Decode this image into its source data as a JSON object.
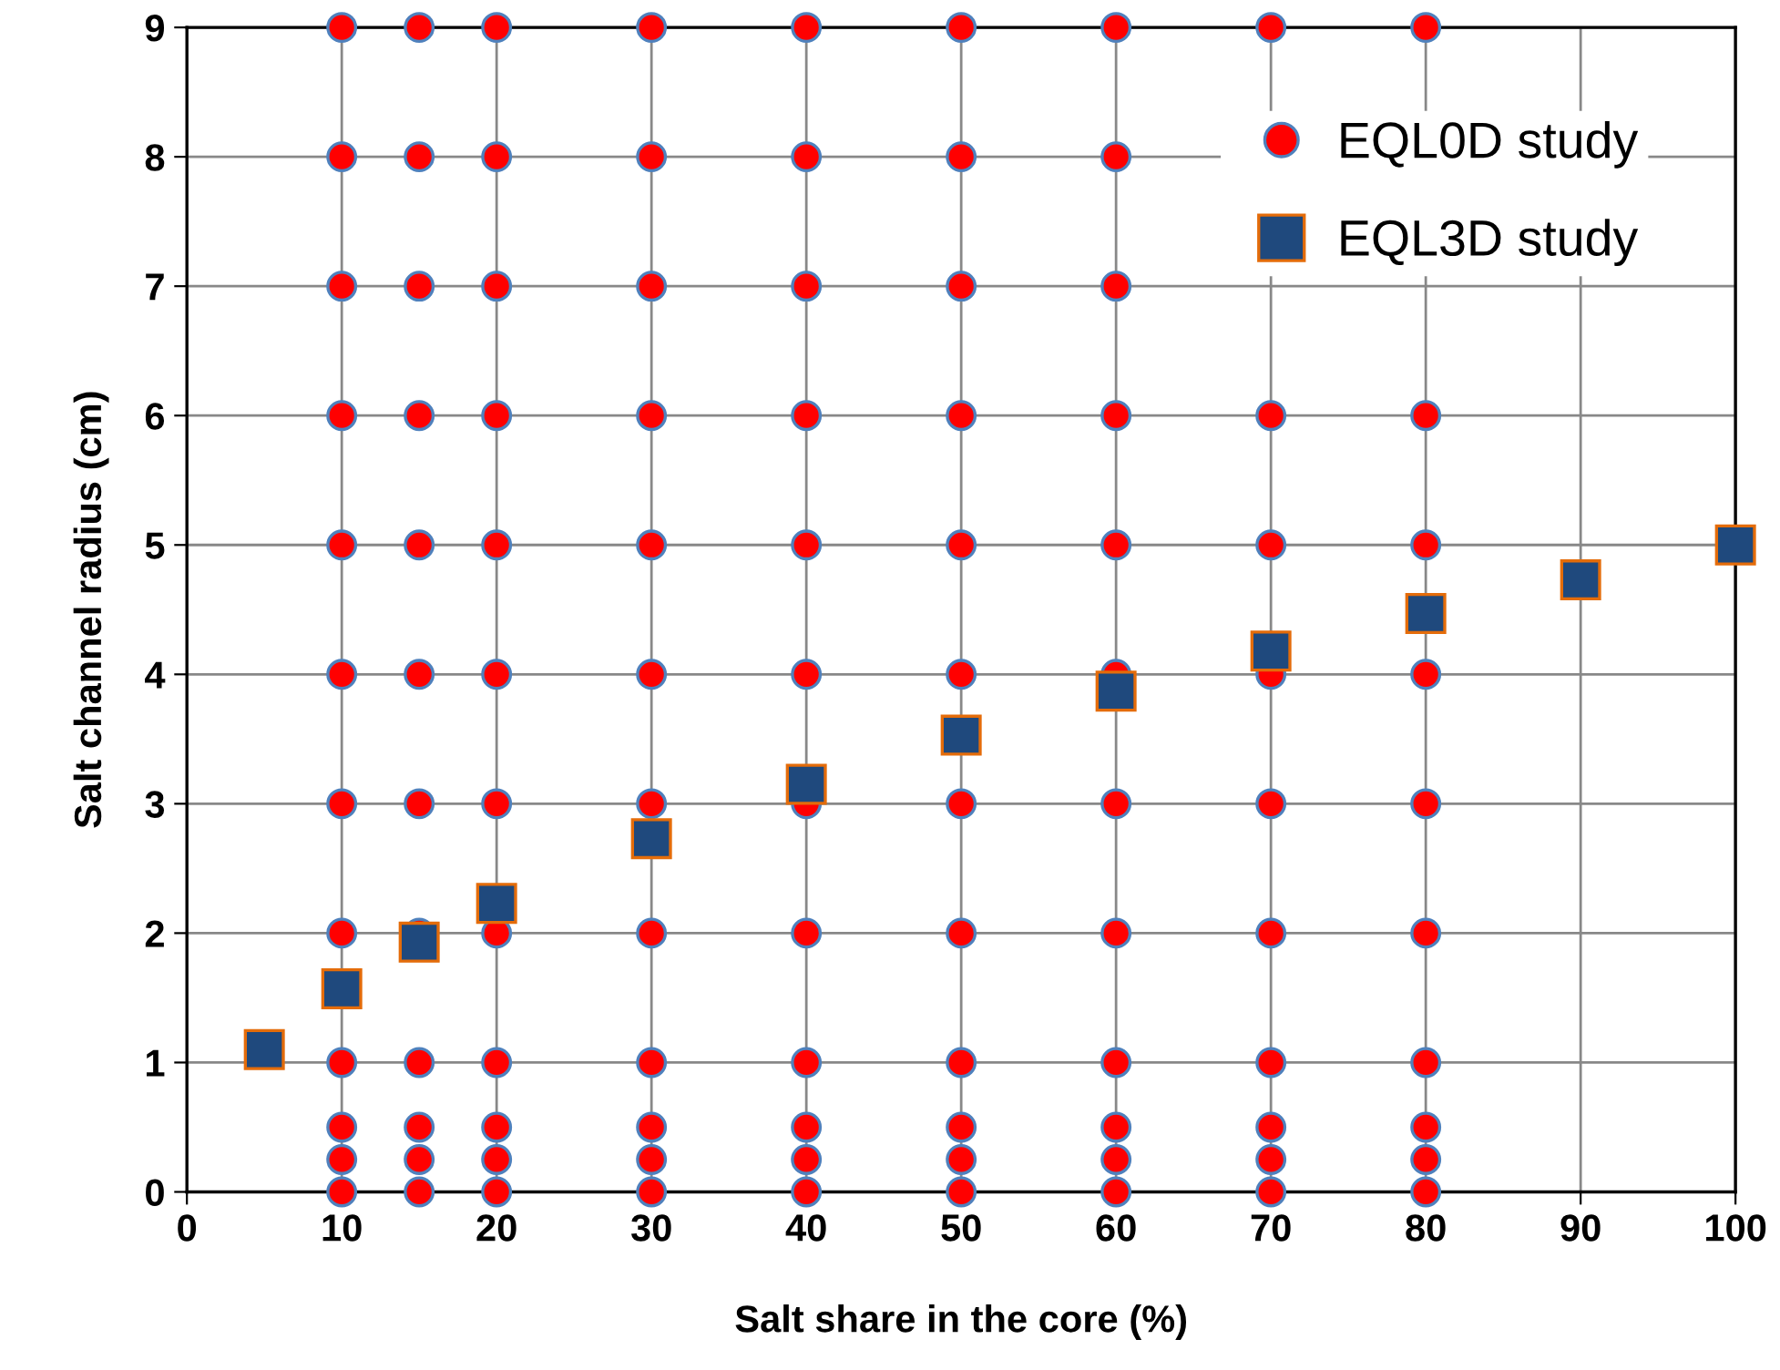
{
  "chart_data": {
    "type": "scatter",
    "xlabel": "Salt share in the core (%)",
    "ylabel": "Salt channel radius (cm)",
    "xlim": [
      0,
      100
    ],
    "xticks": [
      0,
      10,
      20,
      30,
      40,
      50,
      60,
      70,
      80,
      90,
      100
    ],
    "ylim": [
      0,
      9
    ],
    "yticks": [
      0,
      1,
      2,
      3,
      4,
      5,
      6,
      7,
      8,
      9
    ],
    "grid": true,
    "legend": "top right",
    "series": [
      {
        "name": "EQL0D study",
        "color": "#ff0000",
        "marker": "circle",
        "x": [
          10,
          10,
          10,
          10,
          10,
          10,
          10,
          10,
          10,
          10,
          10,
          10,
          15,
          15,
          15,
          15,
          15,
          15,
          15,
          15,
          15,
          15,
          15,
          15,
          20,
          20,
          20,
          20,
          20,
          20,
          20,
          20,
          20,
          20,
          20,
          20,
          30,
          30,
          30,
          30,
          30,
          30,
          30,
          30,
          30,
          30,
          30,
          30,
          40,
          40,
          40,
          40,
          40,
          40,
          40,
          40,
          40,
          40,
          40,
          40,
          50,
          50,
          50,
          50,
          50,
          50,
          50,
          50,
          50,
          50,
          50,
          50,
          60,
          60,
          60,
          60,
          60,
          60,
          60,
          60,
          60,
          60,
          60,
          60,
          70,
          70,
          70,
          70,
          70,
          70,
          70,
          70,
          70,
          70,
          80,
          80,
          80,
          80,
          80,
          80,
          80,
          80,
          80,
          80
        ],
        "values": [
          0,
          0.25,
          0.5,
          1,
          2,
          3,
          4,
          5,
          6,
          7,
          8,
          9,
          0,
          0.25,
          0.5,
          1,
          2,
          3,
          4,
          5,
          6,
          7,
          8,
          9,
          0,
          0.25,
          0.5,
          1,
          2,
          3,
          4,
          5,
          6,
          7,
          8,
          9,
          0,
          0.25,
          0.5,
          1,
          2,
          3,
          4,
          5,
          6,
          7,
          8,
          9,
          0,
          0.25,
          0.5,
          1,
          2,
          3,
          4,
          5,
          6,
          7,
          8,
          9,
          0,
          0.25,
          0.5,
          1,
          2,
          3,
          4,
          5,
          6,
          7,
          8,
          9,
          0,
          0.25,
          0.5,
          1,
          2,
          3,
          4,
          5,
          6,
          7,
          8,
          9,
          0,
          0.25,
          0.5,
          1,
          2,
          3,
          4,
          5,
          6,
          9,
          0,
          0.25,
          0.5,
          1,
          2,
          3,
          4,
          5,
          6,
          9
        ]
      },
      {
        "name": "EQL3D study",
        "color": "#1f497d",
        "marker": "square",
        "x": [
          5,
          10,
          15,
          20,
          30,
          40,
          50,
          60,
          70,
          80,
          90,
          100
        ],
        "values": [
          1.1,
          1.57,
          1.93,
          2.23,
          2.73,
          3.15,
          3.53,
          3.87,
          4.18,
          4.47,
          4.73,
          5.0
        ]
      }
    ]
  }
}
